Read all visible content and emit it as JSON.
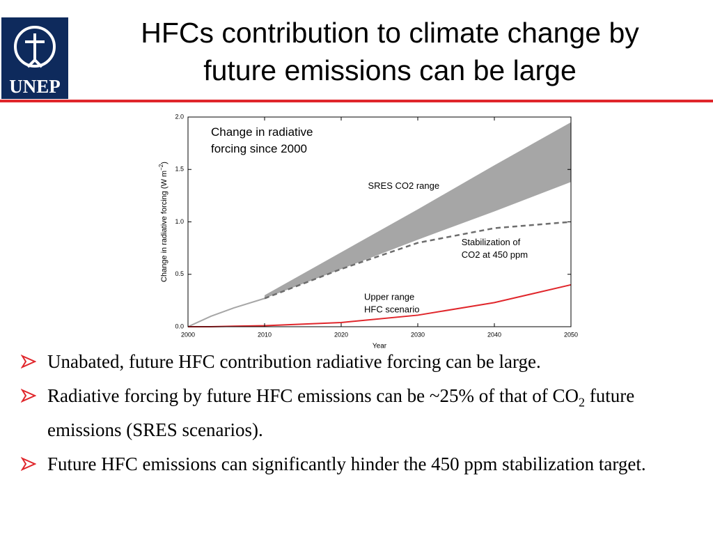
{
  "header": {
    "logo_text": "UNEP",
    "title": [
      "HFCs contribution to climate change by",
      "future emissions can be large"
    ]
  },
  "chart_data": {
    "type": "line",
    "x": [
      2000,
      2003,
      2006,
      2010,
      2020,
      2030,
      2040,
      2050
    ],
    "xlim": [
      2000,
      2050
    ],
    "xticks": [
      2000,
      2010,
      2020,
      2030,
      2040,
      2050
    ],
    "ylim": [
      0,
      2
    ],
    "yticks": [
      {
        "value": 0,
        "label": "0.0"
      },
      {
        "value": 0.5,
        "label": "0.5"
      },
      {
        "value": 1,
        "label": "1.0"
      },
      {
        "value": 1.5,
        "label": "1.5"
      },
      {
        "value": 2,
        "label": "2.0"
      }
    ],
    "xlabel": "Year",
    "ylabel": {
      "text": "Change in radiative forcing  (W m",
      "sup": "−2",
      "end": ")"
    },
    "band": {
      "color": "#a6a6a6",
      "upper": [
        null,
        null,
        null,
        0.3,
        0.71,
        1.12,
        1.54,
        1.95
      ],
      "lower": [
        null,
        null,
        null,
        0.27,
        0.55,
        0.83,
        1.1,
        1.38
      ]
    },
    "series": [
      {
        "color": "#a6a6a6",
        "dash": false,
        "values": [
          0,
          0.1,
          0.18,
          0.27,
          null,
          null,
          null,
          null
        ]
      },
      {
        "color": "#6d6d6d",
        "dash": true,
        "values": [
          null,
          null,
          null,
          0.27,
          0.55,
          0.8,
          0.94,
          1.0
        ]
      },
      {
        "color": "#e0262b",
        "dash": false,
        "values": [
          0,
          0,
          0.005,
          0.01,
          0.04,
          0.11,
          0.23,
          0.4
        ]
      }
    ],
    "annotations": [
      {
        "lines": [
          "Change in radiative",
          "forcing  since 2000"
        ],
        "x": 2003,
        "y": 1.85,
        "size": 17
      },
      {
        "lines": [
          "SRES CO2 range"
        ],
        "x": 2023.5,
        "y": 1.34,
        "size": 13
      },
      {
        "lines": [
          "Stabilization of",
          "CO2 at 450 ppm"
        ],
        "x": 2035.7,
        "y": 0.8,
        "size": 13
      },
      {
        "lines": [
          "Upper range",
          "HFC scenario"
        ],
        "x": 2023,
        "y": 0.28,
        "size": 13
      }
    ]
  },
  "bullets": [
    {
      "text": "Unabated, future HFC contribution radiative forcing can be large."
    },
    {
      "text": "Radiative forcing by future HFC emissions can be ~25% of that of CO",
      "sub": "2",
      "rest": " future emissions (SRES scenarios)."
    },
    {
      "text": "Future HFC emissions can significantly hinder the 450 ppm stabilization target."
    }
  ]
}
